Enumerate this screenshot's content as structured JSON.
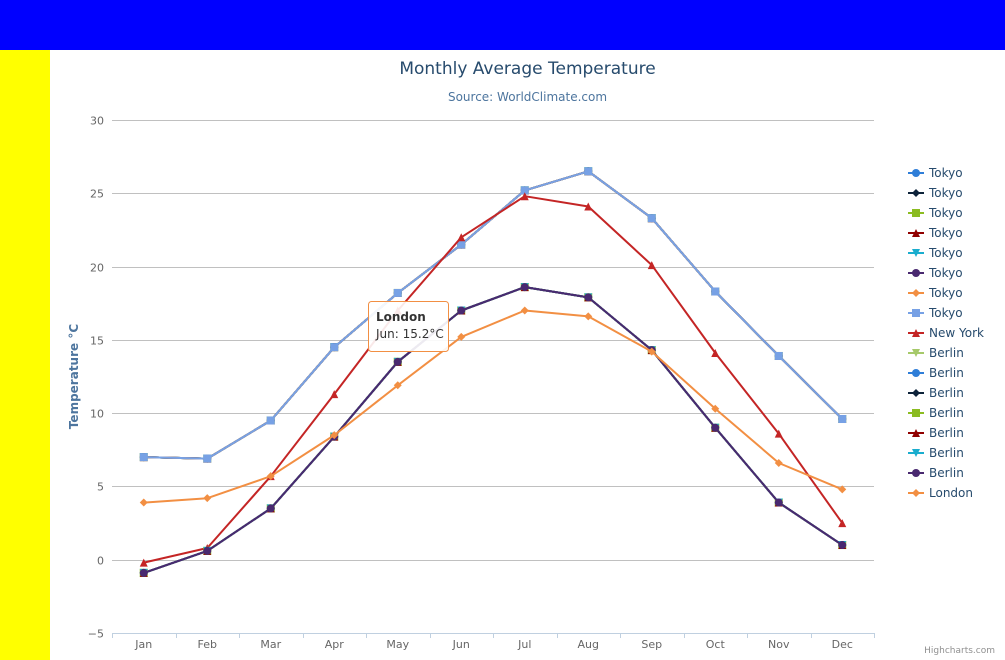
{
  "page": {
    "top_bar_color": "#0000ff",
    "side_bar_color": "#ffff00"
  },
  "chart_data": {
    "type": "line",
    "title": "Monthly Average Temperature",
    "subtitle": "Source: WorldClimate.com",
    "ylabel": "Temperature °C",
    "xlabel": "",
    "ylim": [
      -5,
      30
    ],
    "yticks": [
      -5,
      0,
      5,
      10,
      15,
      20,
      25,
      30
    ],
    "grid": true,
    "legend_position": "right",
    "categories": [
      "Jan",
      "Feb",
      "Mar",
      "Apr",
      "May",
      "Jun",
      "Jul",
      "Aug",
      "Sep",
      "Oct",
      "Nov",
      "Dec"
    ],
    "series": [
      {
        "name": "Tokyo",
        "color": "#2f7ed8",
        "marker": "circle",
        "values": [
          7.0,
          6.9,
          9.5,
          14.5,
          18.2,
          21.5,
          25.2,
          26.5,
          23.3,
          18.3,
          13.9,
          9.6
        ]
      },
      {
        "name": "Tokyo",
        "color": "#0d233a",
        "marker": "diamond",
        "values": [
          7.0,
          6.9,
          9.5,
          14.5,
          18.2,
          21.5,
          25.2,
          26.5,
          23.3,
          18.3,
          13.9,
          9.6
        ]
      },
      {
        "name": "Tokyo",
        "color": "#8bbc21",
        "marker": "square",
        "values": [
          7.0,
          6.9,
          9.5,
          14.5,
          18.2,
          21.5,
          25.2,
          26.5,
          23.3,
          18.3,
          13.9,
          9.6
        ]
      },
      {
        "name": "Tokyo",
        "color": "#910000",
        "marker": "triangle",
        "values": [
          7.0,
          6.9,
          9.5,
          14.5,
          18.2,
          21.5,
          25.2,
          26.5,
          23.3,
          18.3,
          13.9,
          9.6
        ]
      },
      {
        "name": "Tokyo",
        "color": "#1aadce",
        "marker": "triangle-down",
        "values": [
          7.0,
          6.9,
          9.5,
          14.5,
          18.2,
          21.5,
          25.2,
          26.5,
          23.3,
          18.3,
          13.9,
          9.6
        ]
      },
      {
        "name": "Tokyo",
        "color": "#492970",
        "marker": "circle",
        "values": [
          7.0,
          6.9,
          9.5,
          14.5,
          18.2,
          21.5,
          25.2,
          26.5,
          23.3,
          18.3,
          13.9,
          9.6
        ]
      },
      {
        "name": "Tokyo",
        "color": "#f28f43",
        "marker": "diamond",
        "values": [
          7.0,
          6.9,
          9.5,
          14.5,
          18.2,
          21.5,
          25.2,
          26.5,
          23.3,
          18.3,
          13.9,
          9.6
        ]
      },
      {
        "name": "Tokyo",
        "color": "#77a1e5",
        "marker": "square",
        "values": [
          7.0,
          6.9,
          9.5,
          14.5,
          18.2,
          21.5,
          25.2,
          26.5,
          23.3,
          18.3,
          13.9,
          9.6
        ]
      },
      {
        "name": "New York",
        "color": "#c42525",
        "marker": "triangle",
        "values": [
          -0.2,
          0.8,
          5.7,
          11.3,
          17.0,
          22.0,
          24.8,
          24.1,
          20.1,
          14.1,
          8.6,
          2.5
        ]
      },
      {
        "name": "Berlin",
        "color": "#a6c96a",
        "marker": "triangle-down",
        "values": [
          -0.9,
          0.6,
          3.5,
          8.4,
          13.5,
          17.0,
          18.6,
          17.9,
          14.3,
          9.0,
          3.9,
          1.0
        ]
      },
      {
        "name": "Berlin",
        "color": "#2f7ed8",
        "marker": "circle",
        "values": [
          -0.9,
          0.6,
          3.5,
          8.4,
          13.5,
          17.0,
          18.6,
          17.9,
          14.3,
          9.0,
          3.9,
          1.0
        ]
      },
      {
        "name": "Berlin",
        "color": "#0d233a",
        "marker": "diamond",
        "values": [
          -0.9,
          0.6,
          3.5,
          8.4,
          13.5,
          17.0,
          18.6,
          17.9,
          14.3,
          9.0,
          3.9,
          1.0
        ]
      },
      {
        "name": "Berlin",
        "color": "#8bbc21",
        "marker": "square",
        "values": [
          -0.9,
          0.6,
          3.5,
          8.4,
          13.5,
          17.0,
          18.6,
          17.9,
          14.3,
          9.0,
          3.9,
          1.0
        ]
      },
      {
        "name": "Berlin",
        "color": "#910000",
        "marker": "triangle",
        "values": [
          -0.9,
          0.6,
          3.5,
          8.4,
          13.5,
          17.0,
          18.6,
          17.9,
          14.3,
          9.0,
          3.9,
          1.0
        ]
      },
      {
        "name": "Berlin",
        "color": "#1aadce",
        "marker": "triangle-down",
        "values": [
          -0.9,
          0.6,
          3.5,
          8.4,
          13.5,
          17.0,
          18.6,
          17.9,
          14.3,
          9.0,
          3.9,
          1.0
        ]
      },
      {
        "name": "Berlin",
        "color": "#492970",
        "marker": "circle",
        "values": [
          -0.9,
          0.6,
          3.5,
          8.4,
          13.5,
          17.0,
          18.6,
          17.9,
          14.3,
          9.0,
          3.9,
          1.0
        ]
      },
      {
        "name": "London",
        "color": "#f28f43",
        "marker": "diamond",
        "values": [
          3.9,
          4.2,
          5.7,
          8.5,
          11.9,
          15.2,
          17.0,
          16.6,
          14.2,
          10.3,
          6.6,
          4.8
        ]
      }
    ],
    "tooltip": {
      "series": "London",
      "category": "Jun",
      "value": 15.2,
      "title": "London",
      "text": "Jun: 15.2°C",
      "border_color": "#f28f43"
    },
    "credits": "Highcharts.com"
  }
}
